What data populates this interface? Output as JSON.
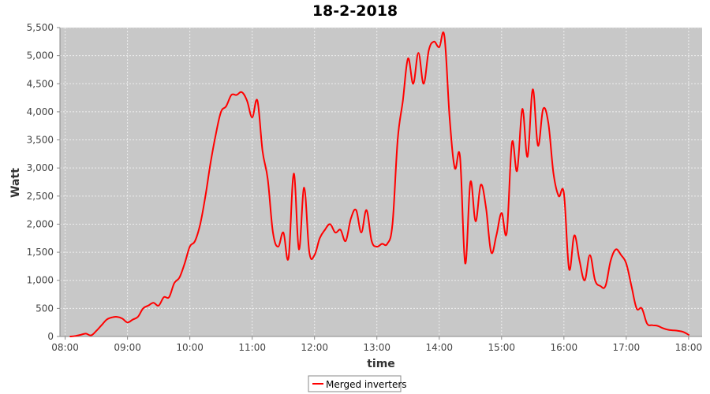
{
  "chart_data": {
    "type": "line",
    "title": "18-2-2018",
    "xlabel": "time",
    "ylabel": "Watt",
    "xlim": [
      "07:55",
      "18:13"
    ],
    "ylim": [
      0,
      5500
    ],
    "grid": true,
    "legend_position": "bottom-center",
    "background_color": "#c8c8c8",
    "grid_color": "#eeeeee",
    "x_ticks": [
      "08:00",
      "09:00",
      "10:00",
      "11:00",
      "12:00",
      "13:00",
      "14:00",
      "15:00",
      "16:00",
      "17:00",
      "18:00"
    ],
    "y_ticks": [
      "0",
      "500",
      "1,000",
      "1,500",
      "2,000",
      "2,500",
      "3,000",
      "3,500",
      "4,000",
      "4,500",
      "5,000",
      "5,500"
    ],
    "series": [
      {
        "name": "Merged inverters",
        "color": "#ff0000",
        "x": [
          "08:05",
          "08:10",
          "08:15",
          "08:20",
          "08:25",
          "08:30",
          "08:35",
          "08:40",
          "08:45",
          "08:50",
          "08:55",
          "09:00",
          "09:05",
          "09:10",
          "09:15",
          "09:20",
          "09:25",
          "09:30",
          "09:35",
          "09:40",
          "09:45",
          "09:50",
          "09:55",
          "10:00",
          "10:05",
          "10:10",
          "10:15",
          "10:20",
          "10:25",
          "10:30",
          "10:35",
          "10:40",
          "10:45",
          "10:50",
          "10:55",
          "11:00",
          "11:05",
          "11:10",
          "11:15",
          "11:20",
          "11:25",
          "11:30",
          "11:35",
          "11:40",
          "11:45",
          "11:50",
          "11:55",
          "12:00",
          "12:05",
          "12:10",
          "12:15",
          "12:20",
          "12:25",
          "12:30",
          "12:35",
          "12:40",
          "12:45",
          "12:50",
          "12:55",
          "13:00",
          "13:05",
          "13:10",
          "13:15",
          "13:20",
          "13:25",
          "13:30",
          "13:35",
          "13:40",
          "13:45",
          "13:50",
          "13:55",
          "14:00",
          "14:05",
          "14:10",
          "14:15",
          "14:20",
          "14:25",
          "14:30",
          "14:35",
          "14:40",
          "14:45",
          "14:50",
          "14:55",
          "15:00",
          "15:05",
          "15:10",
          "15:15",
          "15:20",
          "15:25",
          "15:30",
          "15:35",
          "15:40",
          "15:45",
          "15:50",
          "15:55",
          "16:00",
          "16:05",
          "16:10",
          "16:15",
          "16:20",
          "16:25",
          "16:30",
          "16:35",
          "16:40",
          "16:45",
          "16:50",
          "16:55",
          "17:00",
          "17:05",
          "17:10",
          "17:15",
          "17:20",
          "17:25",
          "17:30",
          "17:35",
          "17:40",
          "17:45",
          "17:50",
          "17:55",
          "18:00"
        ],
        "values": [
          0,
          10,
          30,
          50,
          20,
          100,
          200,
          300,
          340,
          350,
          320,
          250,
          300,
          350,
          500,
          550,
          600,
          550,
          700,
          700,
          950,
          1050,
          1300,
          1600,
          1700,
          2000,
          2500,
          3100,
          3600,
          4000,
          4100,
          4300,
          4300,
          4350,
          4200,
          3900,
          4200,
          3300,
          2800,
          1850,
          1600,
          1850,
          1400,
          2900,
          1550,
          2650,
          1500,
          1450,
          1750,
          1900,
          2000,
          1850,
          1900,
          1700,
          2100,
          2250,
          1850,
          2250,
          1700,
          1600,
          1650,
          1650,
          2000,
          3500,
          4200,
          4950,
          4500,
          5050,
          4500,
          5100,
          5250,
          5150,
          5350,
          3900,
          3000,
          3200,
          1300,
          2750,
          2050,
          2700,
          2300,
          1500,
          1800,
          2200,
          1850,
          3450,
          2950,
          4050,
          3200,
          4400,
          3400,
          4050,
          3800,
          2900,
          2500,
          2550,
          1200,
          1800,
          1350,
          1000,
          1450,
          1000,
          900,
          900,
          1350,
          1550,
          1450,
          1300,
          900,
          500,
          500,
          230,
          200,
          190,
          150,
          120,
          110,
          100,
          80,
          30
        ]
      }
    ]
  }
}
